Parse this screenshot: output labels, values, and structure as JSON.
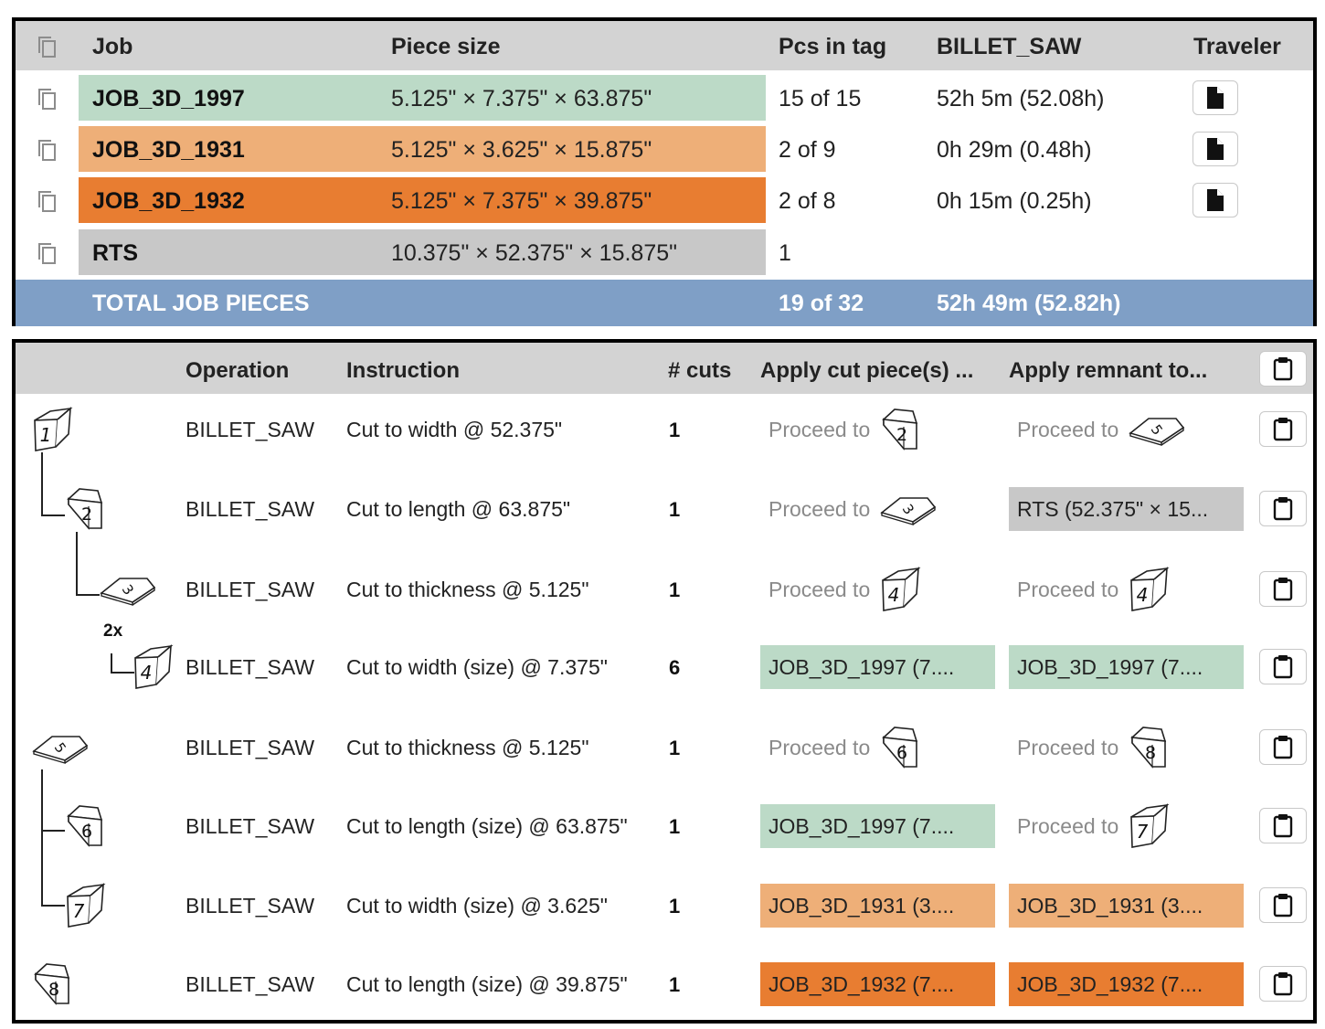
{
  "colors": {
    "green": "#bcdac7",
    "light_orange": "#eeaf78",
    "orange": "#e87d31",
    "gray": "#c8c8c8",
    "total_blue": "#7f9fc6",
    "header_gray": "#d3d3d3"
  },
  "jobs_table": {
    "headers": {
      "job": "Job",
      "piece_size": "Piece size",
      "pcs_in_tag": "Pcs in tag",
      "billet_saw": "BILLET_SAW",
      "traveler": "Traveler"
    },
    "header_icon": "copy-icon",
    "rows": [
      {
        "job": "JOB_3D_1997",
        "piece_size": "5.125\" × 7.375\" × 63.875\"",
        "pcs_in_tag": "15 of 15",
        "billet_saw": "52h 5m (52.08h)",
        "traveler_icon": "file-icon",
        "color": "#bcdac7"
      },
      {
        "job": "JOB_3D_1931",
        "piece_size": "5.125\" × 3.625\" × 15.875\"",
        "pcs_in_tag": "2 of 9",
        "billet_saw": "0h 29m (0.48h)",
        "traveler_icon": "file-icon",
        "color": "#eeaf78"
      },
      {
        "job": "JOB_3D_1932",
        "piece_size": "5.125\" × 7.375\" × 39.875\"",
        "pcs_in_tag": "2 of 8",
        "billet_saw": "0h 15m (0.25h)",
        "traveler_icon": "file-icon",
        "color": "#e87d31"
      },
      {
        "job": "RTS",
        "piece_size": "10.375\" × 52.375\" × 15.875\"",
        "pcs_in_tag": "1",
        "billet_saw": "",
        "traveler_icon": "",
        "color": "#c8c8c8"
      }
    ],
    "total": {
      "label": "TOTAL JOB PIECES",
      "pcs": "19 of 32",
      "time": "52h 49m (52.82h)"
    }
  },
  "ops_table": {
    "headers": {
      "operation": "Operation",
      "instruction": "Instruction",
      "cuts": "# cuts",
      "apply_cut": "Apply cut piece(s) ...",
      "apply_remnant": "Apply remnant to..."
    },
    "header_icon": "clipboard-icon",
    "rows": [
      {
        "piece": "1",
        "operation": "BILLET_SAW",
        "instruction": "Cut to width @ 52.375\"",
        "cuts": "1",
        "cut": {
          "kind": "proceed",
          "text": "Proceed to",
          "piece": "2"
        },
        "remnant": {
          "kind": "proceed",
          "text": "Proceed to",
          "piece": "5"
        }
      },
      {
        "piece": "2",
        "operation": "BILLET_SAW",
        "instruction": "Cut to length @ 63.875\"",
        "cuts": "1",
        "cut": {
          "kind": "proceed",
          "text": "Proceed to",
          "piece": "3"
        },
        "remnant": {
          "kind": "box",
          "text": "RTS (52.375\" × 15...",
          "color": "#c8c8c8"
        }
      },
      {
        "piece": "3",
        "operation": "BILLET_SAW",
        "instruction": "Cut to thickness @ 5.125\"",
        "cuts": "1",
        "cut": {
          "kind": "proceed",
          "text": "Proceed to",
          "piece": "4"
        },
        "remnant": {
          "kind": "proceed",
          "text": "Proceed to",
          "piece": "4"
        }
      },
      {
        "piece": "4",
        "multiplier": "2x",
        "operation": "BILLET_SAW",
        "instruction": "Cut to width (size) @ 7.375\"",
        "cuts": "6",
        "cut": {
          "kind": "box",
          "text": "JOB_3D_1997 (7....",
          "color": "#bcdac7"
        },
        "remnant": {
          "kind": "box",
          "text": "JOB_3D_1997 (7....",
          "color": "#bcdac7"
        }
      },
      {
        "piece": "5",
        "operation": "BILLET_SAW",
        "instruction": "Cut to thickness @ 5.125\"",
        "cuts": "1",
        "cut": {
          "kind": "proceed",
          "text": "Proceed to",
          "piece": "6"
        },
        "remnant": {
          "kind": "proceed",
          "text": "Proceed to",
          "piece": "8"
        }
      },
      {
        "piece": "6",
        "operation": "BILLET_SAW",
        "instruction": "Cut to length (size) @ 63.875\"",
        "cuts": "1",
        "cut": {
          "kind": "box",
          "text": "JOB_3D_1997 (7....",
          "color": "#bcdac7"
        },
        "remnant": {
          "kind": "proceed",
          "text": "Proceed to",
          "piece": "7"
        }
      },
      {
        "piece": "7",
        "operation": "BILLET_SAW",
        "instruction": "Cut to width (size) @ 3.625\"",
        "cuts": "1",
        "cut": {
          "kind": "box",
          "text": "JOB_3D_1931 (3....",
          "color": "#eeaf78"
        },
        "remnant": {
          "kind": "box",
          "text": "JOB_3D_1931 (3....",
          "color": "#eeaf78"
        }
      },
      {
        "piece": "8",
        "operation": "BILLET_SAW",
        "instruction": "Cut to length (size) @ 39.875\"",
        "cuts": "1",
        "cut": {
          "kind": "box",
          "text": "JOB_3D_1932 (7....",
          "color": "#e87d31"
        },
        "remnant": {
          "kind": "box",
          "text": "JOB_3D_1932 (7....",
          "color": "#e87d31"
        }
      }
    ]
  }
}
